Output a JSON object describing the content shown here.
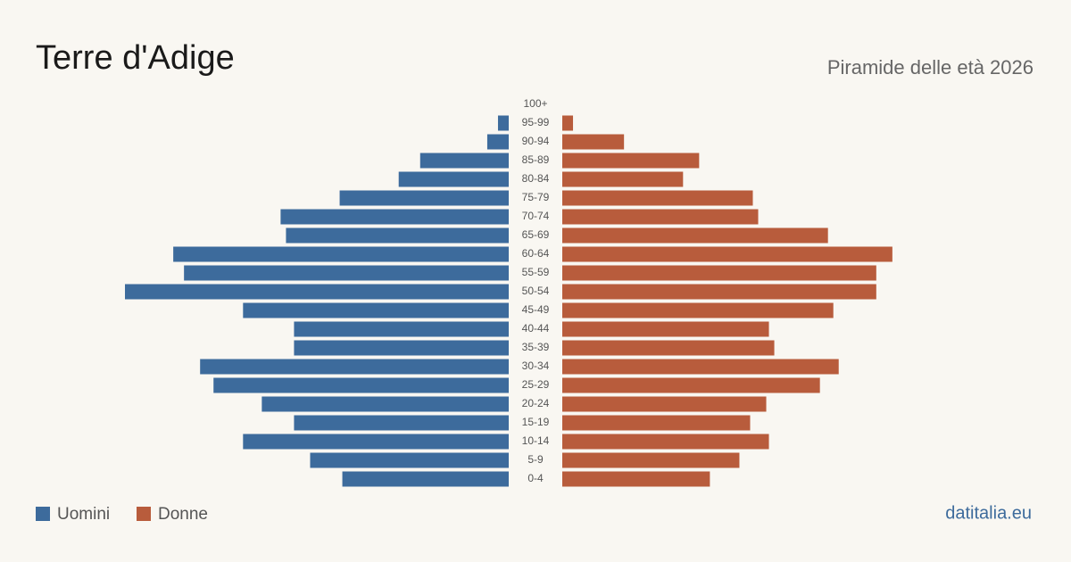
{
  "chart_data": {
    "type": "pyramid",
    "title": "Terre d'Adige",
    "subtitle": "Piramide delle età 2026",
    "source": "datitalia.eu",
    "categories": [
      "100+",
      "95-99",
      "90-94",
      "85-89",
      "80-84",
      "75-79",
      "70-74",
      "65-69",
      "60-64",
      "55-59",
      "50-54",
      "45-49",
      "40-44",
      "35-39",
      "30-34",
      "25-29",
      "20-24",
      "15-19",
      "10-14",
      "5-9",
      "0-4"
    ],
    "series": [
      {
        "name": "Uomini",
        "color": "#3d6b9c",
        "values": [
          0,
          4,
          8,
          33,
          41,
          63,
          85,
          83,
          125,
          121,
          143,
          99,
          80,
          80,
          115,
          110,
          92,
          80,
          99,
          74,
          62
        ]
      },
      {
        "name": "Donne",
        "color": "#b85c3c",
        "values": [
          0,
          4,
          23,
          51,
          45,
          71,
          73,
          99,
          123,
          117,
          117,
          101,
          77,
          79,
          103,
          96,
          76,
          70,
          77,
          66,
          55
        ]
      }
    ]
  }
}
